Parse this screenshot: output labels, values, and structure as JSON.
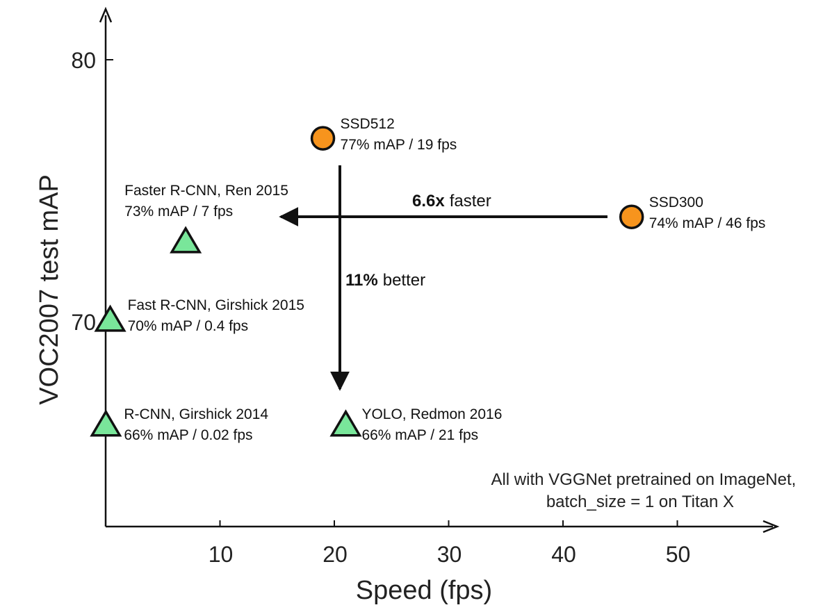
{
  "chart_data": {
    "type": "scatter",
    "title": "",
    "xlabel": "Speed (fps)",
    "ylabel": "VOC2007 test mAP",
    "xlim": [
      0,
      57
    ],
    "ylim": [
      62,
      82
    ],
    "xticks": [
      10,
      20,
      30,
      40,
      50
    ],
    "yticks": [
      70,
      80
    ],
    "x_tick_labels": [
      "10",
      "20",
      "30",
      "40",
      "50"
    ],
    "y_tick_labels": [
      "70",
      "80"
    ],
    "grid": false,
    "colors": {
      "circle": "#f7941d",
      "triangle": "#79e69a",
      "outline": "#111111"
    },
    "points": [
      {
        "name": "SSD512",
        "detail": "77% mAP / 19 fps",
        "x": 19,
        "y": 77,
        "marker": "circle"
      },
      {
        "name": "SSD300",
        "detail": "74% mAP / 46 fps",
        "x": 46,
        "y": 74,
        "marker": "circle"
      },
      {
        "name": "Faster R-CNN, Ren 2015",
        "detail": "73% mAP / 7 fps",
        "x": 7,
        "y": 73,
        "marker": "triangle"
      },
      {
        "name": "Fast R-CNN, Girshick 2015",
        "detail": "70% mAP / 0.4 fps",
        "x": 0.4,
        "y": 70,
        "marker": "triangle"
      },
      {
        "name": "R-CNN, Girshick 2014",
        "detail": "66% mAP / 0.02 fps",
        "x": 0.02,
        "y": 66,
        "marker": "triangle"
      },
      {
        "name": "YOLO, Redmon 2016",
        "detail": "66% mAP / 21 fps",
        "x": 21,
        "y": 66,
        "marker": "triangle"
      }
    ],
    "annotations": [
      {
        "bold": "6.6x",
        "text": "faster",
        "direction": "left"
      },
      {
        "bold": "11%",
        "text": "better",
        "direction": "down"
      }
    ],
    "note": [
      "All with VGGNet pretrained on ImageNet,",
      "batch_size = 1 on Titan X"
    ]
  }
}
